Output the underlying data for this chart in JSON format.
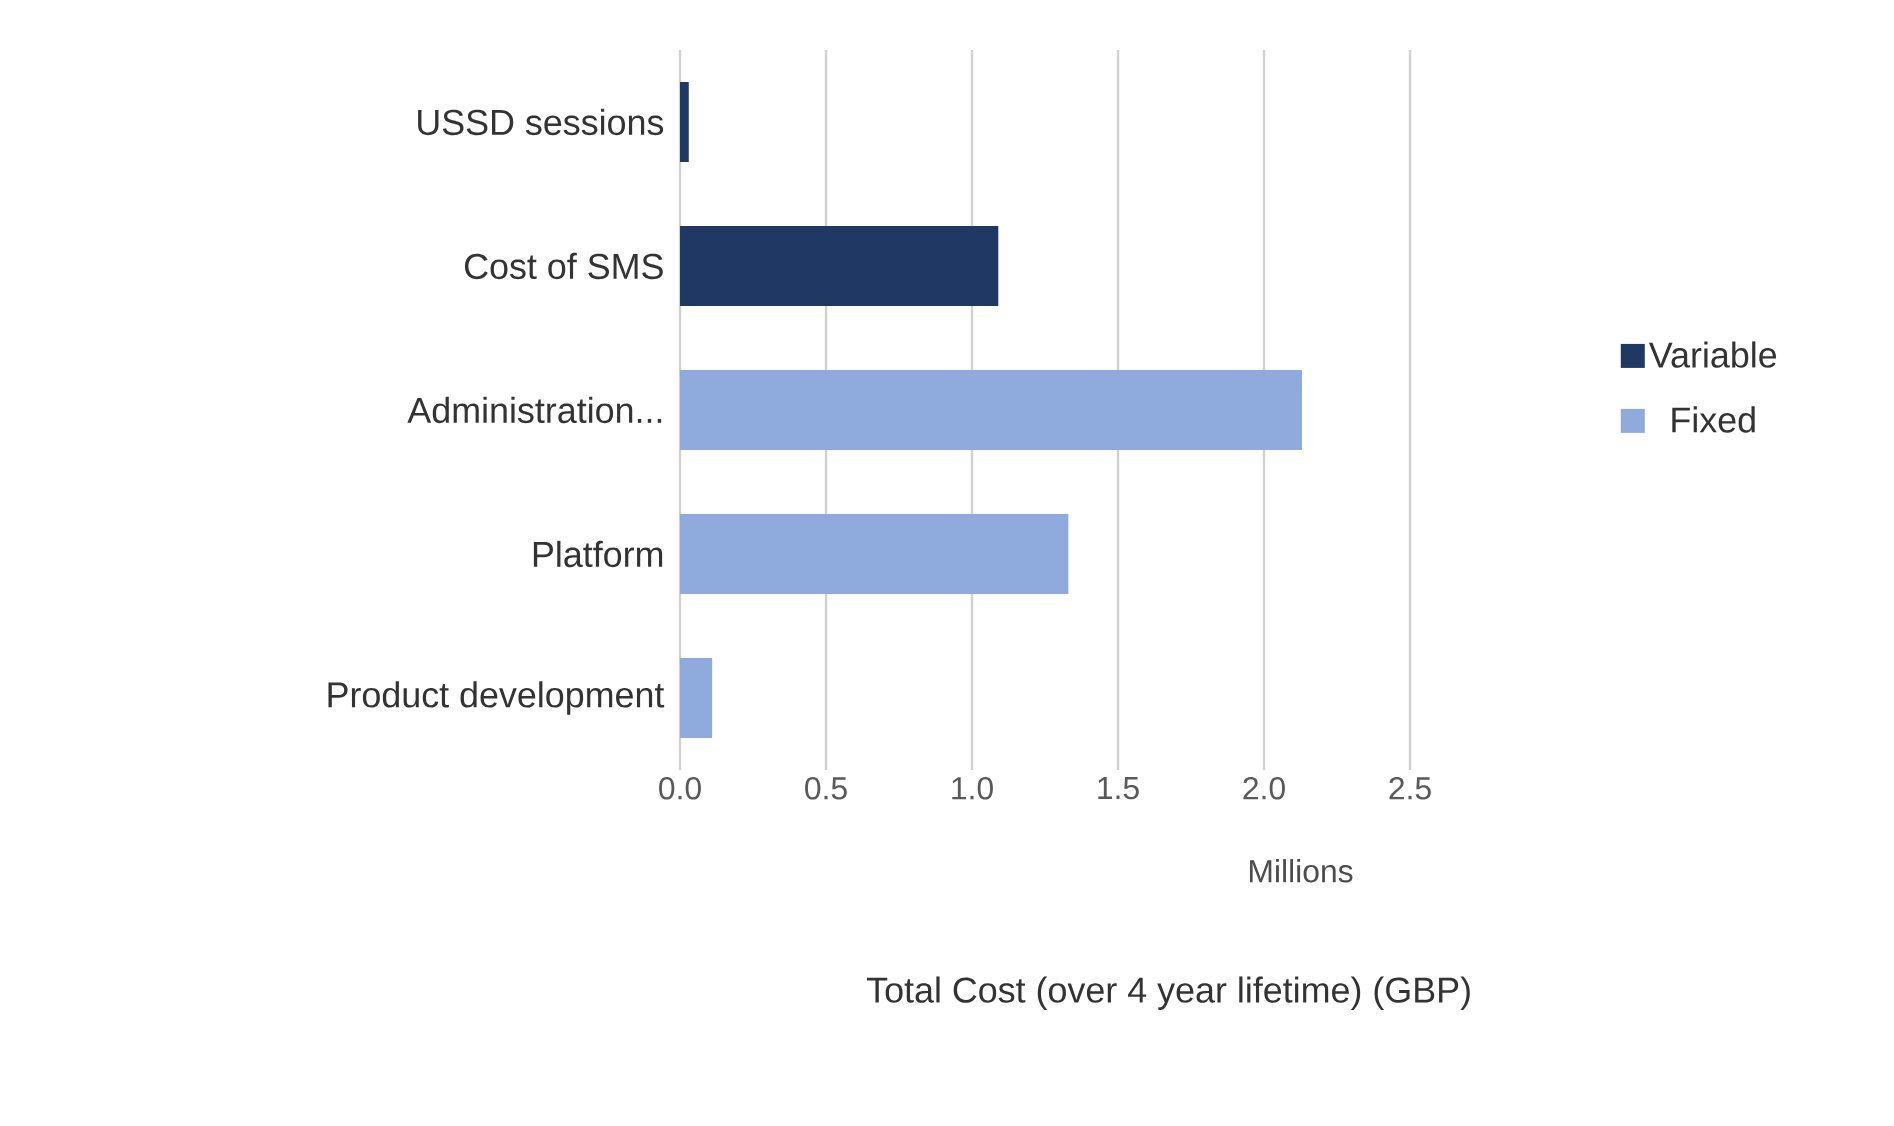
{
  "chart_data": {
    "type": "bar",
    "orientation": "horizontal",
    "categories": [
      "USSD sessions",
      "Cost of SMS",
      "Administration...",
      "Platform",
      "Product development"
    ],
    "series": [
      {
        "name": "Variable",
        "color": "#1f3864",
        "values": [
          0.03,
          1.09,
          null,
          null,
          null
        ]
      },
      {
        "name": "Fixed",
        "color": "#8faadc",
        "values": [
          null,
          null,
          2.13,
          1.33,
          0.11
        ]
      }
    ],
    "xlim": [
      0,
      2.5
    ],
    "xticks": [
      {
        "value": 0,
        "label": "0.0"
      },
      0.5,
      {
        "value": 1,
        "label": "1.0"
      },
      1.5,
      {
        "value": 2,
        "label": "2.0"
      },
      2.5
    ],
    "xlabel": "Total Cost (over 4 year lifetime) (GBP)",
    "annotations": [
      "Millions"
    ],
    "grid": "x",
    "legend": "right"
  }
}
